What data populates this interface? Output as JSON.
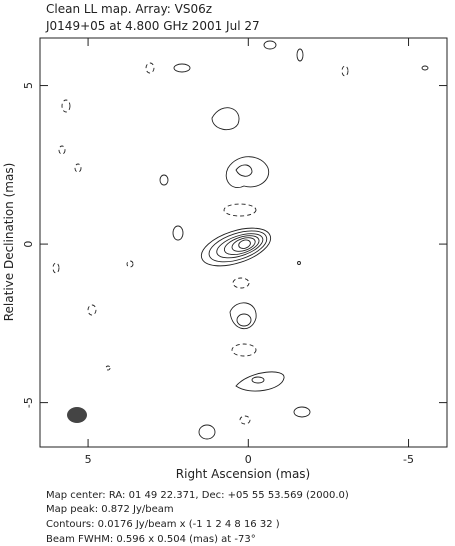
{
  "chart_data": {
    "type": "contour",
    "title": "Clean LL map.  Array:  VS06z",
    "subtitle": "J0149+05 at 4.800 GHz 2001 Jul 27",
    "x_label": "Right Ascension  (mas)",
    "y_label": "Relative Declination  (mas)",
    "xlim": [
      6.5,
      -6.2
    ],
    "ylim": [
      -6.4,
      6.5
    ],
    "xticks": [
      5,
      0,
      -5
    ],
    "yticks": [
      -5,
      0,
      5
    ],
    "notes": [
      "Map center:  RA: 01 49 22.371,  Dec: +05 55 53.569 (2000.0)",
      "Map peak: 0.872 Jy/beam",
      "Contours: 0.0176 Jy/beam x (-1 1 2 4 8 16 32 )",
      "Beam FWHM: 0.596 x 0.504 (mas) at -73°"
    ]
  }
}
